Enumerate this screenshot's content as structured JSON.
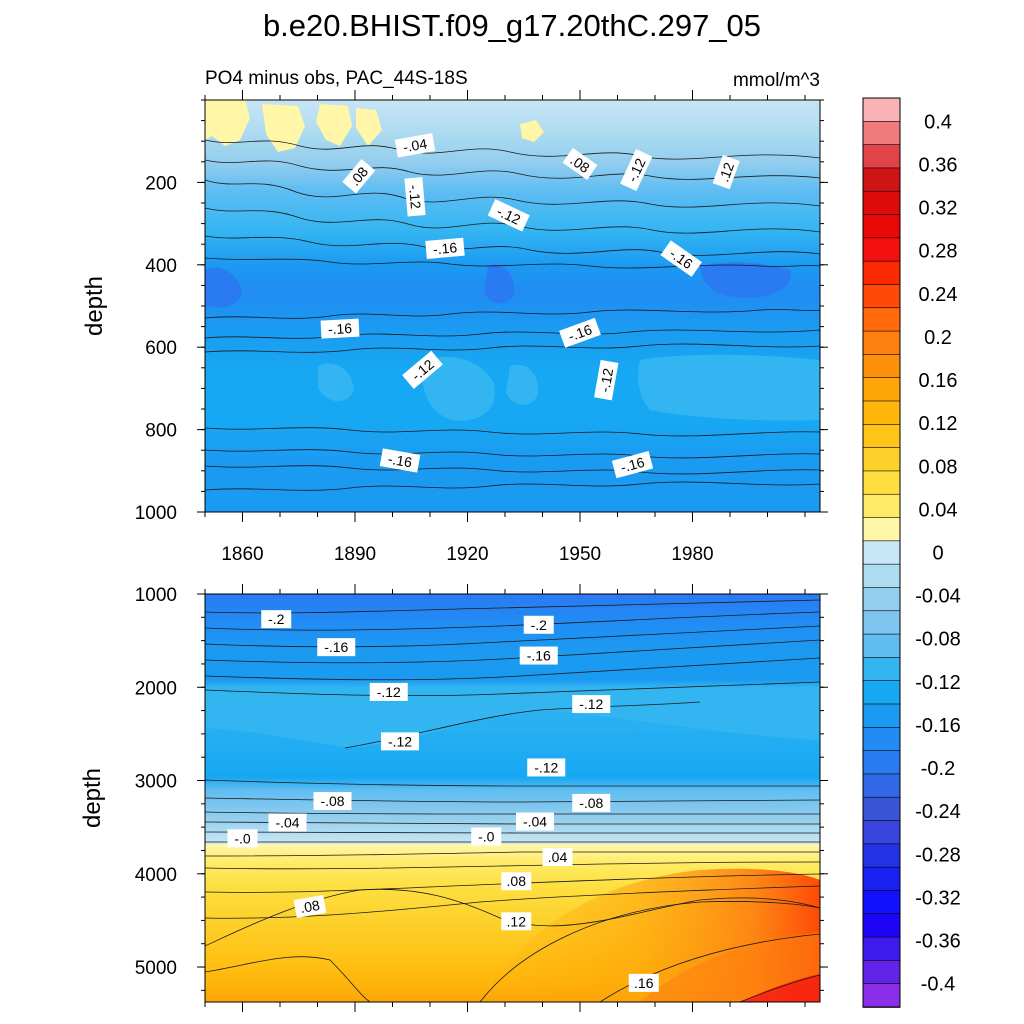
{
  "title": "b.e20.BHIST.f09_g17.20thC.297_05",
  "left_subtitle": "PO4 minus obs, PAC_44S-18S",
  "right_subtitle": "mmol/m^3",
  "chart_data": [
    {
      "type": "heatmap",
      "name": "upper-ocean",
      "x_range": [
        1850,
        2014
      ],
      "x_ticks": [
        1860,
        1890,
        1920,
        1950,
        1980
      ],
      "ylabel": "depth",
      "y_range": [
        0,
        1000
      ],
      "y_reversed": true,
      "y_ticks": [
        200,
        400,
        600,
        800,
        1000
      ],
      "contour_labels": [
        {
          "text": "-.04",
          "x": 1906,
          "depth": 110,
          "angle": -10
        },
        {
          "text": ".08",
          "x": 1891,
          "depth": 185,
          "angle": -50
        },
        {
          "text": "-.12",
          "x": 1906,
          "depth": 235,
          "angle": 85
        },
        {
          "text": "-.12",
          "x": 1931,
          "depth": 280,
          "angle": 25
        },
        {
          "text": "-.16",
          "x": 1914,
          "depth": 360,
          "angle": -5
        },
        {
          "text": ".08",
          "x": 1950,
          "depth": 155,
          "angle": 35
        },
        {
          "text": "-.12",
          "x": 1965,
          "depth": 170,
          "angle": -65
        },
        {
          "text": ".12",
          "x": 1989,
          "depth": 175,
          "angle": -70
        },
        {
          "text": "-.16",
          "x": 1977,
          "depth": 385,
          "angle": 35
        },
        {
          "text": "-.16",
          "x": 1886,
          "depth": 555,
          "angle": -3
        },
        {
          "text": "-.16",
          "x": 1950,
          "depth": 565,
          "angle": -20
        },
        {
          "text": "-.12",
          "x": 1908,
          "depth": 655,
          "angle": -40
        },
        {
          "text": "-.12",
          "x": 1957,
          "depth": 680,
          "angle": -80
        },
        {
          "text": "-.16",
          "x": 1902,
          "depth": 875,
          "angle": 10
        },
        {
          "text": "-.16",
          "x": 1964,
          "depth": 885,
          "angle": -15
        }
      ]
    },
    {
      "type": "heatmap",
      "name": "deep-ocean",
      "x_range": [
        1850,
        2014
      ],
      "x_ticks": [
        1860,
        1890,
        1920,
        1950,
        1980
      ],
      "ylabel": "depth",
      "y_range": [
        1000,
        5375
      ],
      "y_reversed": true,
      "y_ticks": [
        1000,
        2000,
        3000,
        4000,
        5000
      ],
      "contour_labels": [
        {
          "text": "-.2",
          "x": 1869,
          "depth": 1270,
          "angle": 0
        },
        {
          "text": "-.2",
          "x": 1939,
          "depth": 1330,
          "angle": 0
        },
        {
          "text": "-.16",
          "x": 1885,
          "depth": 1570,
          "angle": 0
        },
        {
          "text": "-.16",
          "x": 1939,
          "depth": 1660,
          "angle": 0
        },
        {
          "text": "-.12",
          "x": 1899,
          "depth": 2050,
          "angle": 0
        },
        {
          "text": "-.12",
          "x": 1953,
          "depth": 2180,
          "angle": 0
        },
        {
          "text": "-.12",
          "x": 1902,
          "depth": 2580,
          "angle": 0
        },
        {
          "text": "-.12",
          "x": 1941,
          "depth": 2860,
          "angle": 0
        },
        {
          "text": "-.08",
          "x": 1884,
          "depth": 3220,
          "angle": 0
        },
        {
          "text": "-.08",
          "x": 1953,
          "depth": 3240,
          "angle": 0
        },
        {
          "text": "-.04",
          "x": 1872,
          "depth": 3450,
          "angle": 0
        },
        {
          "text": "-.04",
          "x": 1938,
          "depth": 3440,
          "angle": 0
        },
        {
          "text": "-.0",
          "x": 1860,
          "depth": 3620,
          "angle": 0
        },
        {
          "text": "-.0",
          "x": 1925,
          "depth": 3600,
          "angle": 0
        },
        {
          "text": ".04",
          "x": 1944,
          "depth": 3820,
          "angle": 0
        },
        {
          "text": ".08",
          "x": 1933,
          "depth": 4080,
          "angle": 0
        },
        {
          "text": ".08",
          "x": 1878,
          "depth": 4350,
          "angle": -10
        },
        {
          "text": ".12",
          "x": 1933,
          "depth": 4510,
          "angle": 0
        },
        {
          "text": ".16",
          "x": 1967,
          "depth": 5170,
          "angle": 0
        }
      ]
    },
    {
      "type": "colorbar",
      "name": "colorbar",
      "labels": [
        "0.4",
        "0.36",
        "0.32",
        "0.28",
        "0.24",
        "0.2",
        "0.16",
        "0.12",
        "0.08",
        "0.04",
        "0",
        "-0.04",
        "-0.08",
        "-0.12",
        "-0.16",
        "-0.2",
        "-0.24",
        "-0.28",
        "-0.32",
        "-0.36",
        "-0.4"
      ],
      "colors": [
        "#f9b3b6",
        "#f07b7f",
        "#e04448",
        "#cf1414",
        "#dd0b0b",
        "#ea0707",
        "#f51010",
        "#fc2a04",
        "#fd4a07",
        "#fe6a0c",
        "#fe7f11",
        "#fe910c",
        "#fea50a",
        "#ffb60b",
        "#ffc418",
        "#fdd12c",
        "#fedf3f",
        "#ffeb66",
        "#fff6a8",
        "#c8e6f6",
        "#addbf0",
        "#94ceee",
        "#7ec6ef",
        "#5fbdf2",
        "#33b5f2",
        "#17a8f3",
        "#1b9af2",
        "#218cf3",
        "#2a7af2",
        "#3068e6",
        "#3a56d8",
        "#3a45e0",
        "#2233e3",
        "#1920ef",
        "#1111fd",
        "#1e04f7",
        "#3d1bee",
        "#6324ea",
        "#8b2ee9"
      ]
    }
  ]
}
